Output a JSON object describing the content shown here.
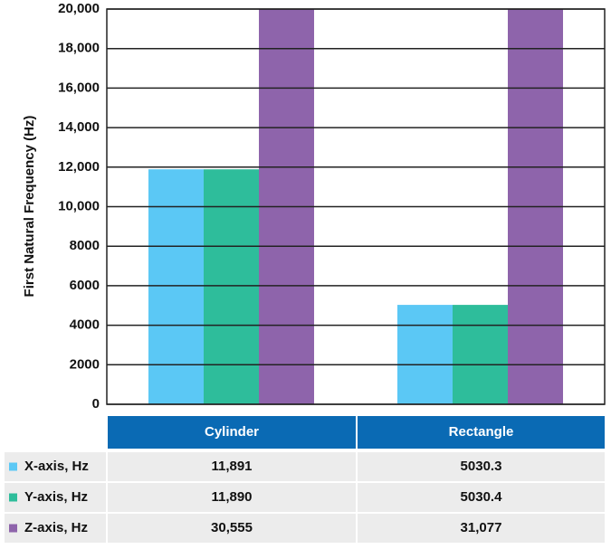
{
  "chart_data": {
    "type": "bar",
    "y_label": "First Natural Frequency (Hz)",
    "categories": [
      "Cylinder",
      "Rectangle"
    ],
    "series": [
      {
        "name": "X-axis, Hz",
        "color": "#5bc8f5",
        "values": [
          11891,
          5030.3
        ],
        "value_labels": [
          "11,891",
          "5030.3"
        ]
      },
      {
        "name": "Y-axis, Hz",
        "color": "#2ebd9b",
        "values": [
          11890,
          5030.4
        ],
        "value_labels": [
          "11,890",
          "5030.4"
        ]
      },
      {
        "name": "Z-axis, Hz",
        "color": "#8e64ab",
        "values": [
          30555,
          31077
        ],
        "value_labels": [
          "30,555",
          "31,077"
        ]
      }
    ],
    "ylim": [
      0,
      20000
    ],
    "yticks": [
      0,
      2000,
      4000,
      6000,
      8000,
      {
        "value": 10000,
        "label": "10,000"
      },
      {
        "value": 12000,
        "label": "12,000"
      },
      {
        "value": 14000,
        "label": "14,000"
      },
      {
        "value": 16000,
        "label": "16,000"
      },
      {
        "value": 18000,
        "label": "18,000"
      },
      {
        "value": 20000,
        "label": "20,000"
      }
    ],
    "grid": true,
    "table_header_color": "#0a6ab4"
  }
}
